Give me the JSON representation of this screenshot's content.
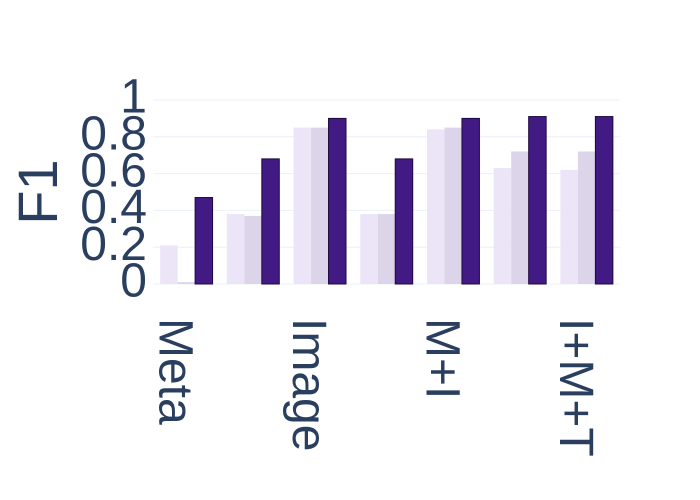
{
  "chart_data": {
    "type": "bar",
    "y_label": "F1",
    "categories": [
      "Meta",
      null,
      "Image",
      null,
      "M+I",
      null,
      "I+M+T"
    ],
    "series": [
      {
        "color": "#ebe5f7",
        "values": [
          0.21,
          0.38,
          0.85,
          0.38,
          0.84,
          0.63,
          0.62
        ]
      },
      {
        "color": "#dcd5ea",
        "values": [
          0.01,
          0.37,
          0.85,
          0.38,
          0.85,
          0.72,
          0.72
        ]
      },
      {
        "color": "#421a83",
        "values": [
          0.47,
          0.68,
          0.9,
          0.68,
          0.9,
          0.91,
          0.91
        ]
      }
    ],
    "ylim": [
      0,
      1
    ],
    "yticks": [
      0,
      0.2,
      0.4,
      0.6,
      0.8,
      1
    ],
    "grid": true
  }
}
